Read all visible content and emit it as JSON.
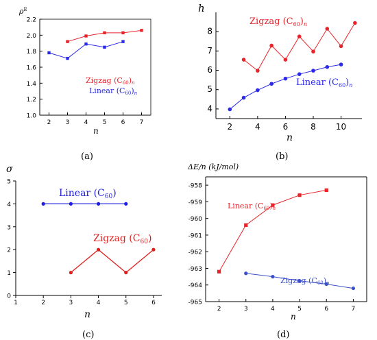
{
  "chart_data": [
    {
      "type": "line",
      "panel": "(a)",
      "xlabel": "n",
      "ylabel": "ρE",
      "xlim": [
        1.5,
        7.5
      ],
      "ylim": [
        1.0,
        2.2
      ],
      "x_ticks": [
        "2",
        "3",
        "4",
        "5",
        "6",
        "7"
      ],
      "y_ticks": [
        "1.0",
        "1.2",
        "1.4",
        "1.6",
        "1.8",
        "2.0",
        "2.2"
      ],
      "series": [
        {
          "name": "Zigzag (C60)n",
          "color": "#e8232a",
          "x": [
            3,
            4,
            5,
            6,
            7
          ],
          "y": [
            1.92,
            1.99,
            2.03,
            2.03,
            2.06
          ]
        },
        {
          "name": "Linear (C60)n",
          "color": "#2a2ae8",
          "x": [
            2,
            3,
            4,
            5,
            6
          ],
          "y": [
            1.78,
            1.71,
            1.89,
            1.85,
            1.92
          ]
        }
      ]
    },
    {
      "type": "line",
      "panel": "(b)",
      "xlabel": "n",
      "ylabel": "h",
      "xlim": [
        1,
        11.5
      ],
      "ylim": [
        3.5,
        9
      ],
      "x_ticks": [
        "2",
        "4",
        "6",
        "8",
        "10"
      ],
      "y_ticks": [
        "4",
        "5",
        "6",
        "7",
        "8"
      ],
      "series": [
        {
          "name": "Zigzag (C60)n",
          "color": "#e8232a",
          "x": [
            3,
            4,
            5,
            6,
            7,
            8,
            9,
            10,
            11
          ],
          "y": [
            6.55,
            5.98,
            7.28,
            6.55,
            7.75,
            6.97,
            8.15,
            7.25,
            8.45
          ]
        },
        {
          "name": "Linear (C60)n",
          "color": "#2a2ae8",
          "x": [
            2,
            3,
            4,
            5,
            6,
            7,
            8,
            9,
            10
          ],
          "y": [
            3.98,
            4.58,
            4.97,
            5.3,
            5.57,
            5.8,
            5.98,
            6.17,
            6.3
          ]
        }
      ]
    },
    {
      "type": "line",
      "panel": "(c)",
      "xlabel": "n",
      "ylabel": "σ",
      "xlim": [
        1,
        6.3
      ],
      "ylim": [
        0,
        5
      ],
      "x_ticks": [
        "1",
        "2",
        "3",
        "4",
        "5",
        "6"
      ],
      "y_ticks": [
        "0",
        "1",
        "2",
        "3",
        "4",
        "5"
      ],
      "series": [
        {
          "name": "Linear (C60)",
          "color": "#1e1ee0",
          "x": [
            2,
            3,
            4,
            5
          ],
          "y": [
            4,
            4,
            4,
            4
          ]
        },
        {
          "name": "Zigzag (C60)",
          "color": "#e01e1e",
          "x": [
            3,
            4,
            5,
            6
          ],
          "y": [
            1,
            2,
            1,
            2
          ]
        }
      ]
    },
    {
      "type": "line",
      "panel": "(d)",
      "xlabel": "n",
      "ylabel": "ΔE/n (kJ/mol)",
      "xlim": [
        1.5,
        7.5
      ],
      "ylim": [
        -965,
        -957.5
      ],
      "x_ticks": [
        "2",
        "3",
        "4",
        "5",
        "6",
        "7"
      ],
      "y_ticks": [
        "-958",
        "-959",
        "-960",
        "-961",
        "-962",
        "-963",
        "-964",
        "-965"
      ],
      "series": [
        {
          "name": "Linear (C60)n",
          "color": "#e8232a",
          "x": [
            2,
            3,
            4,
            5,
            6
          ],
          "y": [
            -963.2,
            -960.4,
            -959.2,
            -958.6,
            -958.3
          ]
        },
        {
          "name": "Zigzag (C60)n",
          "color": "#3a4fc8",
          "x": [
            3,
            4,
            5,
            6,
            7
          ],
          "y": [
            -963.3,
            -963.5,
            -963.75,
            -963.95,
            -964.2
          ]
        }
      ]
    }
  ]
}
